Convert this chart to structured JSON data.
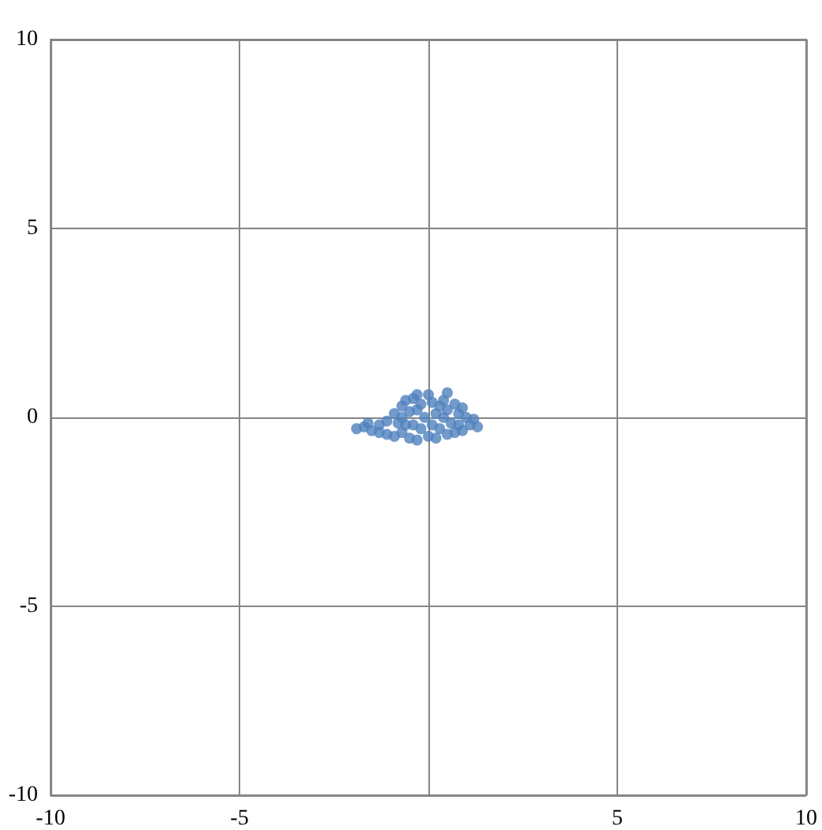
{
  "chart_data": {
    "type": "scatter",
    "marker": "circle",
    "grid": true,
    "xlim": [
      -10,
      10
    ],
    "xticks": [
      -10,
      -5,
      {
        "value": 0,
        "label": null
      },
      5,
      10
    ],
    "ylim": [
      -10,
      10
    ],
    "yticks": [
      -10,
      -5,
      0,
      5,
      10
    ],
    "series": [
      {
        "color": "#4f81bd",
        "x": [
          -1.9,
          -1.7,
          -1.5,
          -1.6,
          -1.3,
          -1.3,
          -1.1,
          -1.1,
          -0.9,
          -0.9,
          -0.7,
          -0.7,
          -0.7,
          -0.6,
          -0.5,
          -0.5,
          -0.4,
          -0.4,
          -0.3,
          -0.3,
          -0.3,
          -0.2,
          -0.1,
          0,
          0,
          0.1,
          0.2,
          0.2,
          0.3,
          0.4,
          0.4,
          0.5,
          0.5,
          0.5,
          0.6,
          0.7,
          0.7,
          0.8,
          0.8,
          0.9,
          0.9,
          1.0,
          1.1,
          1.2,
          1.3,
          -0.8,
          -0.6,
          0.1,
          -0.2,
          0.3
        ],
        "values": [
          -0.3,
          -0.25,
          -0.35,
          -0.15,
          -0.4,
          -0.2,
          -0.1,
          -0.45,
          0.1,
          -0.5,
          0.3,
          0,
          -0.4,
          0.45,
          -0.55,
          0.15,
          0.5,
          -0.2,
          0.6,
          0.2,
          -0.6,
          -0.3,
          0,
          0.6,
          -0.5,
          -0.2,
          0.1,
          -0.55,
          -0.3,
          0.45,
          0,
          0.65,
          -0.45,
          0.2,
          -0.15,
          0.35,
          -0.4,
          0.1,
          -0.2,
          0.25,
          -0.35,
          0,
          -0.2,
          -0.05,
          -0.25,
          -0.15,
          -0.2,
          0.4,
          0.35,
          0.3
        ]
      }
    ]
  }
}
